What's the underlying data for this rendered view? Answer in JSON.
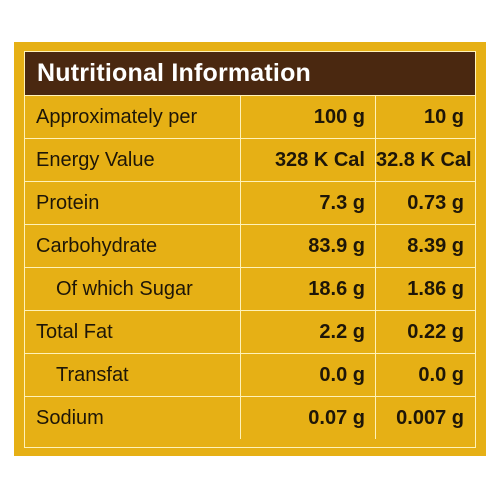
{
  "title": "Nutritional Information",
  "rows": [
    {
      "label": "Approximately per",
      "per100": "100 g",
      "perServing": "10 g"
    },
    {
      "label": "Energy Value",
      "per100": "328 K Cal",
      "perServing": "32.8 K Cal"
    },
    {
      "label": "Protein",
      "per100": "7.3 g",
      "perServing": "0.73 g"
    },
    {
      "label": "Carbohydrate",
      "per100": "83.9 g",
      "perServing": "8.39 g"
    },
    {
      "label": "Of which Sugar",
      "per100": "18.6 g",
      "perServing": "1.86 g"
    },
    {
      "label": "Total Fat",
      "per100": "2.2 g",
      "perServing": "0.22 g"
    },
    {
      "label": "Transfat",
      "per100": "0.0 g",
      "perServing": "0.0 g"
    },
    {
      "label": "Sodium",
      "per100": "0.07 g",
      "perServing": "0.007 g"
    }
  ],
  "colors": {
    "panel": "#e6b015",
    "header": "#4a2810",
    "rule": "#fff2b8",
    "text": "#1e1608"
  }
}
